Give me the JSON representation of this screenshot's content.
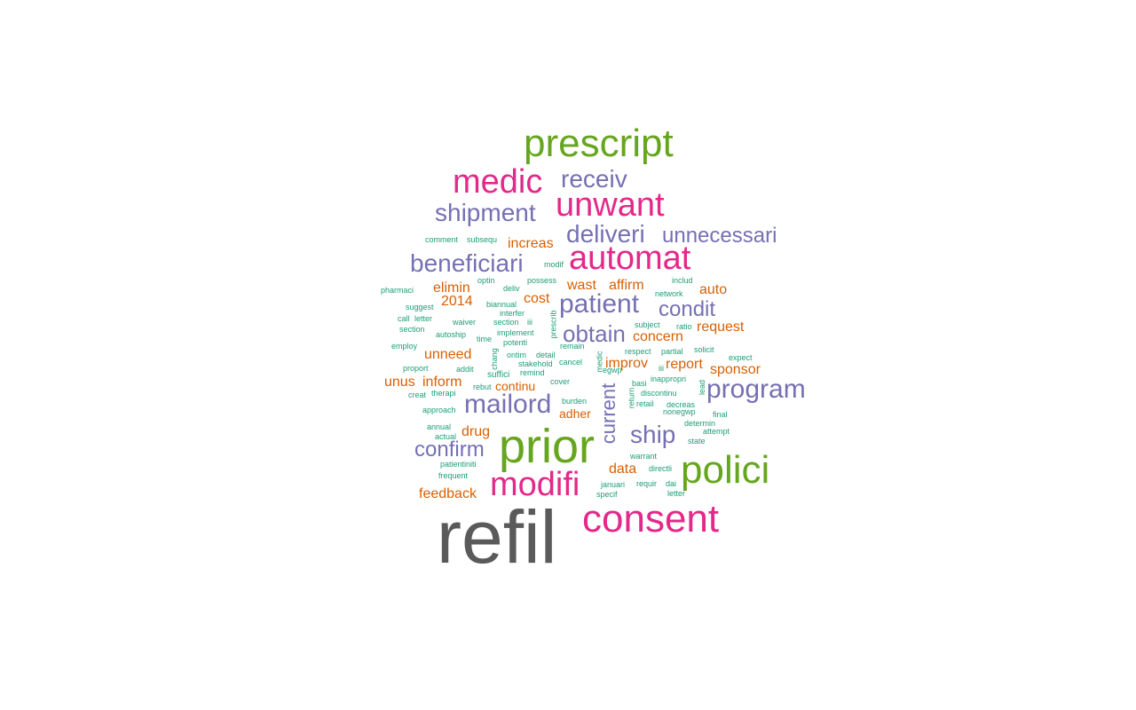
{
  "palette": {
    "gray": "#5a5a5a",
    "pink": "#e3298a",
    "green": "#66a61e",
    "purple": "#7570b3",
    "orange": "#d95f02",
    "teal": "#1b9e77"
  },
  "words": [
    "refil",
    "prior",
    "prescript",
    "consent",
    "polici",
    "modifi",
    "automat",
    "unwant",
    "medic",
    "program",
    "mailord",
    "patient",
    "beneficiari",
    "shipment",
    "receiv",
    "deliveri",
    "unnecessari",
    "confirm",
    "ship",
    "condit",
    "obtain",
    "current",
    "increas",
    "elimin",
    "2014",
    "cost",
    "wast",
    "affirm",
    "auto",
    "concern",
    "request",
    "unneed",
    "improv",
    "report",
    "sponsor",
    "unus",
    "inform",
    "continu",
    "adher",
    "drug",
    "data",
    "feedback",
    "comment",
    "subsequ",
    "pharmaci",
    "suggest",
    "call",
    "letter",
    "section",
    "employ",
    "proport",
    "creat",
    "therapi",
    "approach",
    "annual",
    "actual",
    "patientiniti",
    "frequent",
    "optin",
    "deliv",
    "possess",
    "modif",
    "biannual",
    "interfer",
    "waiver",
    "autoship",
    "implement",
    "time",
    "potenti",
    "ontim",
    "detail",
    "stakehold",
    "suffici",
    "remind",
    "cancel",
    "rebut",
    "chang",
    "prescrib",
    "remain",
    "egwp",
    "respect",
    "partial",
    "solicit",
    "expect",
    "includ",
    "network",
    "subject",
    "ratio",
    "iii",
    "inappropri",
    "basi",
    "discontinu",
    "lead",
    "retail",
    "decreas",
    "nonegwp",
    "final",
    "determin",
    "attempt",
    "state",
    "warrant",
    "directli",
    "januari",
    "requir",
    "dai",
    "specif",
    "return",
    "cover",
    "burden",
    "addit",
    "medic"
  ]
}
